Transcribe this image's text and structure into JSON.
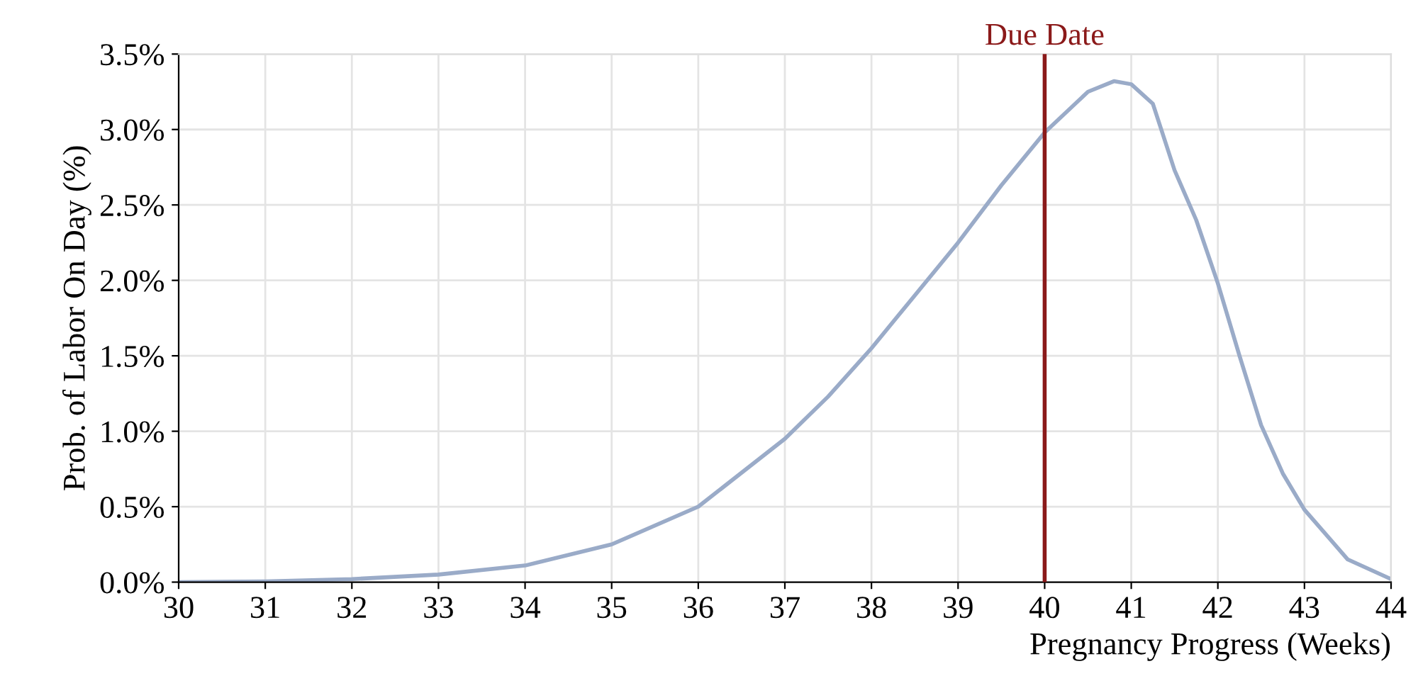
{
  "chart_data": {
    "type": "line",
    "xlabel": "Pregnancy Progress (Weeks)",
    "ylabel": "Prob. of Labor On Day (%)",
    "x": [
      30,
      31,
      32,
      33,
      34,
      35,
      36,
      37,
      37.5,
      38,
      38.5,
      39,
      39.5,
      40,
      40.5,
      40.8,
      41,
      41.25,
      41.5,
      41.75,
      42,
      42.25,
      42.5,
      42.75,
      43,
      43.5,
      44
    ],
    "series": [
      {
        "color": "#9aabc8",
        "values": [
          0.0,
          0.005,
          0.02,
          0.05,
          0.11,
          0.25,
          0.5,
          0.95,
          1.23,
          1.55,
          1.9,
          2.25,
          2.63,
          2.98,
          3.25,
          3.32,
          3.3,
          3.17,
          2.73,
          2.4,
          1.98,
          1.5,
          1.04,
          0.72,
          0.48,
          0.15,
          0.02
        ]
      }
    ],
    "xlim": [
      30,
      44
    ],
    "xticks": [
      30,
      31,
      32,
      33,
      34,
      35,
      36,
      37,
      38,
      39,
      40,
      41,
      42,
      43,
      44
    ],
    "ylim": [
      0,
      3.5
    ],
    "yticks": [
      {
        "value": 0,
        "label": "0.0%"
      },
      {
        "value": 0.5,
        "label": "0.5%"
      },
      {
        "value": 1,
        "label": "1.0%"
      },
      {
        "value": 1.5,
        "label": "1.5%"
      },
      {
        "value": 2,
        "label": "2.0%"
      },
      {
        "value": 2.5,
        "label": "2.5%"
      },
      {
        "value": 3,
        "label": "3.0%"
      },
      {
        "value": 3.5,
        "label": "3.5%"
      }
    ],
    "grid": true,
    "legend": false,
    "marker": "none",
    "line_style": "solid",
    "ref_lines": [
      {
        "axis": "x",
        "value": 40,
        "label": "Due Date",
        "color": "#8b1a1a"
      }
    ]
  }
}
